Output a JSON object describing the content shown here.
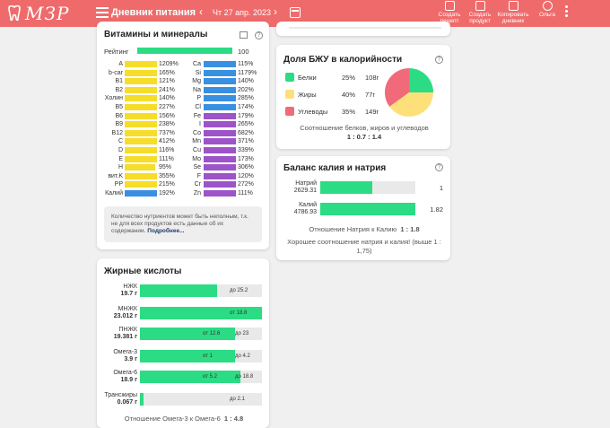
{
  "header": {
    "logo_text": "МЗР",
    "title": "Дневник питания",
    "prev": "‹",
    "date": "Чт 27 апр. 2023",
    "next": "›",
    "actions": [
      {
        "label1": "Создать",
        "label2": "рецепт"
      },
      {
        "label1": "Создать",
        "label2": "продукт"
      },
      {
        "label1": "Копировать",
        "label2": "дневник"
      },
      {
        "label1": "Ольга",
        "label2": ""
      }
    ]
  },
  "vitamins": {
    "title": "Витамины и минералы",
    "rating_label": "Рейтинг",
    "rating_value": "100",
    "rating": 100,
    "left": [
      {
        "name": "A",
        "pct": "1209%",
        "fill": 1,
        "color": "yellow"
      },
      {
        "name": "b-car",
        "pct": "165%",
        "fill": 1,
        "color": "yellow"
      },
      {
        "name": "B1",
        "pct": "121%",
        "fill": 1,
        "color": "yellow"
      },
      {
        "name": "B2",
        "pct": "241%",
        "fill": 1,
        "color": "yellow"
      },
      {
        "name": "Холин",
        "pct": "140%",
        "fill": 1,
        "color": "yellow"
      },
      {
        "name": "B5",
        "pct": "227%",
        "fill": 1,
        "color": "yellow"
      },
      {
        "name": "B6",
        "pct": "156%",
        "fill": 1,
        "color": "yellow"
      },
      {
        "name": "B9",
        "pct": "238%",
        "fill": 1,
        "color": "yellow"
      },
      {
        "name": "B12",
        "pct": "737%",
        "fill": 1,
        "color": "yellow"
      },
      {
        "name": "C",
        "pct": "412%",
        "fill": 1,
        "color": "yellow"
      },
      {
        "name": "D",
        "pct": "116%",
        "fill": 1,
        "color": "yellow"
      },
      {
        "name": "E",
        "pct": "111%",
        "fill": 1,
        "color": "yellow"
      },
      {
        "name": "H",
        "pct": "95%",
        "fill": 0.95,
        "color": "yellow"
      },
      {
        "name": "вит.K",
        "pct": "355%",
        "fill": 1,
        "color": "yellow"
      },
      {
        "name": "PP",
        "pct": "215%",
        "fill": 1,
        "color": "yellow"
      },
      {
        "name": "Калий",
        "pct": "192%",
        "fill": 1,
        "color": "blue"
      }
    ],
    "right": [
      {
        "name": "Ca",
        "pct": "115%",
        "fill": 1,
        "color": "blue"
      },
      {
        "name": "Si",
        "pct": "1179%",
        "fill": 1,
        "color": "blue"
      },
      {
        "name": "Mg",
        "pct": "140%",
        "fill": 1,
        "color": "blue"
      },
      {
        "name": "Na",
        "pct": "202%",
        "fill": 1,
        "color": "blue"
      },
      {
        "name": "P",
        "pct": "285%",
        "fill": 1,
        "color": "blue"
      },
      {
        "name": "Cl",
        "pct": "174%",
        "fill": 1,
        "color": "blue"
      },
      {
        "name": "Fe",
        "pct": "179%",
        "fill": 1,
        "color": "purple"
      },
      {
        "name": "I",
        "pct": "265%",
        "fill": 1,
        "color": "purple"
      },
      {
        "name": "Co",
        "pct": "682%",
        "fill": 1,
        "color": "purple"
      },
      {
        "name": "Mn",
        "pct": "371%",
        "fill": 1,
        "color": "purple"
      },
      {
        "name": "Cu",
        "pct": "339%",
        "fill": 1,
        "color": "purple"
      },
      {
        "name": "Mo",
        "pct": "173%",
        "fill": 1,
        "color": "purple"
      },
      {
        "name": "Se",
        "pct": "306%",
        "fill": 1,
        "color": "purple"
      },
      {
        "name": "F",
        "pct": "120%",
        "fill": 1,
        "color": "purple"
      },
      {
        "name": "Cr",
        "pct": "272%",
        "fill": 1,
        "color": "purple"
      },
      {
        "name": "Zn",
        "pct": "111%",
        "fill": 1,
        "color": "purple"
      }
    ],
    "note_text": "Количество нутриентов может быть неполным, т.к. не для всех продуктов есть данные об их содержании.",
    "note_link": "Подробнее..."
  },
  "fatty": {
    "title": "Жирные кислоты",
    "rows": [
      {
        "name": "НЖК",
        "value": "19.7 г",
        "fill": 0.63,
        "left_mark": "",
        "right_mark": "до 25.2"
      },
      {
        "name": "МНЖК",
        "value": "23.012 г",
        "fill": 1,
        "left_mark": "от 18.8",
        "right_mark": ""
      },
      {
        "name": "ПНЖК",
        "value": "19.381 г",
        "fill": 0.78,
        "left_mark": "от 12.6",
        "right_mark": "до 23"
      },
      {
        "name": "Омега-3",
        "value": "3.9 г",
        "fill": 0.78,
        "left_mark": "от 1",
        "right_mark": "до 4.2"
      },
      {
        "name": "Омега-6",
        "value": "18.9 г",
        "fill": 0.82,
        "left_mark": "от 5.2",
        "right_mark": "до 18.8"
      },
      {
        "name": "Трансжиры",
        "value": "0.067 г",
        "fill": 0.03,
        "left_mark": "",
        "right_mark": "до 2.1"
      }
    ],
    "ratio_text": "Отношение Омега-3 к Омега-6",
    "ratio_value": "1 : 4.8"
  },
  "bju": {
    "title": "Доля БЖУ в калорийности",
    "items": [
      {
        "name": "Белки",
        "pct": "25%",
        "grams": "108г",
        "color": "#2bdc84",
        "share": 25
      },
      {
        "name": "Жиры",
        "pct": "40%",
        "grams": "77г",
        "color": "#fde07a",
        "share": 40
      },
      {
        "name": "Углеводы",
        "pct": "35%",
        "grams": "149г",
        "color": "#f06a7a",
        "share": 35
      }
    ],
    "caption": "Соотношение белков, жиров и углеводов",
    "ratio": "1 : 0.7 : 1.4"
  },
  "kna": {
    "title": "Баланс калия и натрия",
    "rows": [
      {
        "name": "Натрий",
        "value": "2629.31",
        "fill": 0.55,
        "ratio": "1"
      },
      {
        "name": "Калий",
        "value": "4786.93",
        "fill": 1,
        "ratio": "1.82"
      }
    ],
    "ratio_text": "Отношение Натрия к Калию",
    "ratio_value": "1 : 1.8",
    "good_text": "Хорошее соотношение натрия и калия! (выше 1 : 1,75)"
  },
  "colors": {
    "header": "#ef6b6b",
    "green": "#2bdc84",
    "yellow": "#f5dd2a",
    "blue": "#3a90e0",
    "purple": "#9c54c8"
  }
}
